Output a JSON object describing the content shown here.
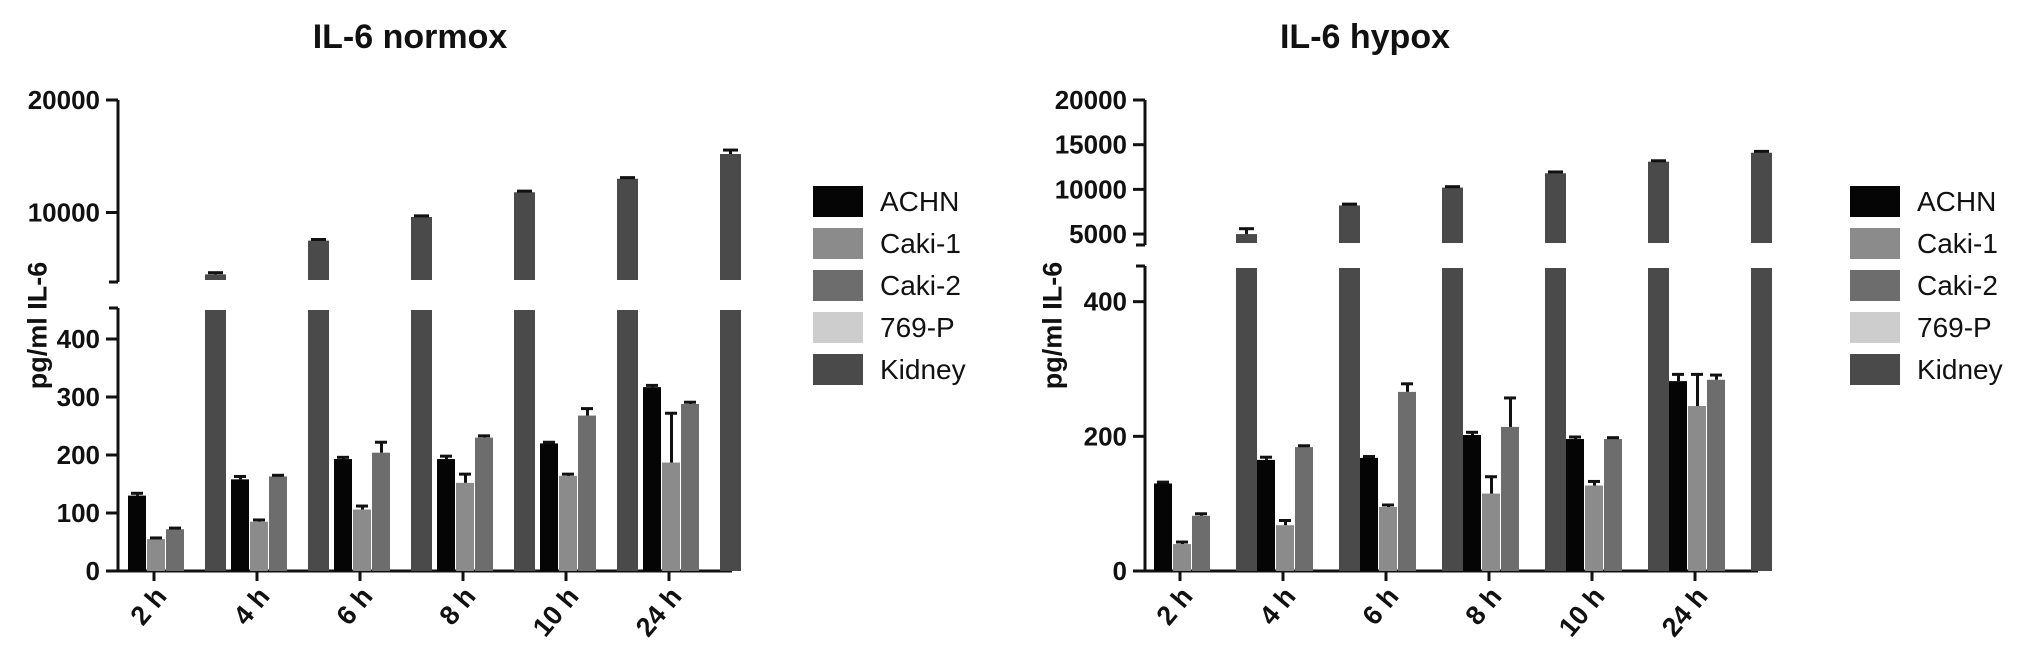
{
  "colors": {
    "ACHN": "#050505",
    "Caki-1": "#8b8b8b",
    "Caki-2": "#6d6d6d",
    "769-P": "#cdcdcd",
    "Kidney": "#4a4a4a"
  },
  "legend": [
    "ACHN",
    "Caki-1",
    "Caki-2",
    "769-P",
    "Kidney"
  ],
  "chart_data": [
    {
      "type": "bar",
      "title": "IL-6 normox",
      "ylabel": "pg/ml IL-6",
      "xlabel": "",
      "categories": [
        "2 h",
        "4 h",
        "6 h",
        "8 h",
        "10 h",
        "24 h"
      ],
      "y_axis_break": true,
      "lower_ylim": [
        0,
        450
      ],
      "lower_yticks": [
        "0",
        "100",
        "200",
        "300",
        "400"
      ],
      "upper_yticks": [
        "10000",
        "20000"
      ],
      "legend_position": "right",
      "series": [
        {
          "name": "ACHN",
          "values": [
            130,
            158,
            193,
            193,
            220,
            317
          ],
          "errors": [
            4,
            5,
            3,
            5,
            2,
            3
          ]
        },
        {
          "name": "Caki-1",
          "values": [
            55,
            85,
            106,
            152,
            164,
            187
          ],
          "errors": [
            2,
            3,
            6,
            15,
            3,
            85
          ]
        },
        {
          "name": "Caki-2",
          "values": [
            72,
            163,
            204,
            230,
            268,
            288
          ],
          "errors": [
            2,
            2,
            18,
            3,
            12,
            3
          ]
        },
        {
          "name": "769-P",
          "values": [
            0,
            0,
            0,
            0,
            0,
            0
          ],
          "errors": [
            0,
            0,
            0,
            0,
            0,
            0
          ]
        },
        {
          "name": "Kidney",
          "values": [
            4500,
            7500,
            9600,
            11800,
            13000,
            15200
          ],
          "errors": [
            150,
            100,
            100,
            100,
            100,
            350
          ]
        }
      ]
    },
    {
      "type": "bar",
      "title": "IL-6 hypox",
      "ylabel": "pg/ml IL-6",
      "xlabel": "",
      "categories": [
        "2 h",
        "4 h",
        "6 h",
        "8 h",
        "10 h",
        "24 h"
      ],
      "y_axis_break": true,
      "lower_ylim": [
        0,
        450
      ],
      "lower_yticks": [
        "0",
        "200",
        "400"
      ],
      "upper_yticks": [
        "5000",
        "10000",
        "15000",
        "20000"
      ],
      "legend_position": "right",
      "series": [
        {
          "name": "ACHN",
          "values": [
            130,
            165,
            168,
            202,
            196,
            282
          ],
          "errors": [
            2,
            4,
            2,
            4,
            3,
            10
          ]
        },
        {
          "name": "Caki-1",
          "values": [
            40,
            68,
            95,
            115,
            127,
            245
          ],
          "errors": [
            3,
            7,
            3,
            25,
            6,
            47
          ]
        },
        {
          "name": "Caki-2",
          "values": [
            82,
            184,
            266,
            214,
            196,
            284
          ],
          "errors": [
            3,
            2,
            12,
            43,
            2,
            7
          ]
        },
        {
          "name": "769-P",
          "values": [
            0,
            0,
            0,
            0,
            0,
            0
          ],
          "errors": [
            0,
            0,
            0,
            0,
            0,
            0
          ]
        },
        {
          "name": "Kidney",
          "values": [
            5000,
            8200,
            10200,
            11800,
            13100,
            14100
          ],
          "errors": [
            600,
            150,
            100,
            150,
            100,
            150
          ]
        }
      ]
    }
  ]
}
